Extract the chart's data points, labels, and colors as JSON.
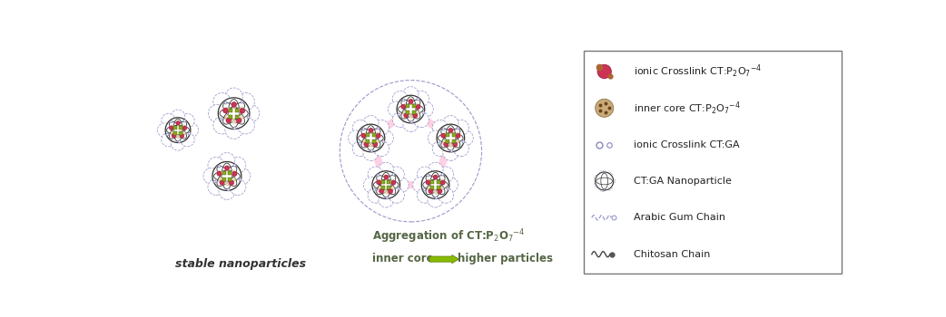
{
  "bg_color": "#ffffff",
  "left_label": "stable nanoparticles",
  "agg_label1": "Aggregation of CT:P",
  "agg_sub1": "2",
  "agg_label2": "O",
  "agg_sub2": "7",
  "agg_sup": "-4",
  "inner_core_label": "inner core",
  "higher_label": "higher particles",
  "legend_items": [
    "ionic Crosslink CT:P₂O₇⁻⁴",
    "inner core CT:P₂O₇⁻⁴",
    "ionic Crosslink CT:GA",
    "CT:GA Nanoparticle",
    "Arabic Gum Chain",
    "Chitosan Chain"
  ],
  "dashed_color": "#9999cc",
  "solid_color": "#333333",
  "crosslink_red": "#cc3355",
  "crosslink_green": "#88aa22",
  "crosslink_blue": "#8888bb",
  "cream_color": "#e8ddb5",
  "pink_bridge": "#ffaacc",
  "green_arrow": "#88bb00"
}
